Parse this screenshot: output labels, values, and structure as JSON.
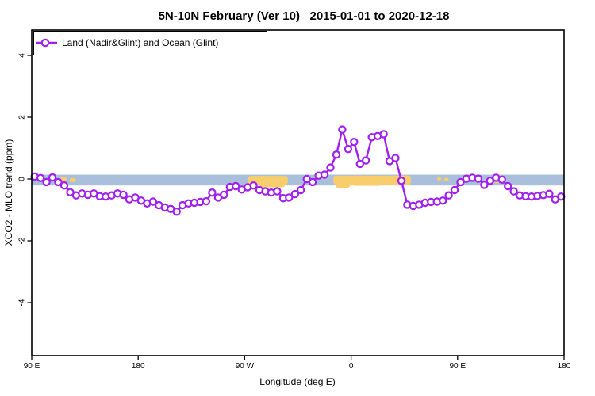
{
  "header": {
    "title": "5N-10N February (Ver 10)   2015-01-01 to 2020-12-18"
  },
  "legend": {
    "label": "Land (Nadir&Glint) and Ocean (Glint)"
  },
  "axes": {
    "x": {
      "title": "Longitude (deg E)",
      "ticks": [
        {
          "lon": 90,
          "label": "90 E"
        },
        {
          "lon": 180,
          "label": "180"
        },
        {
          "lon": 270,
          "label": "90 W"
        },
        {
          "lon": 360,
          "label": "0"
        },
        {
          "lon": 450,
          "label": "90 E"
        },
        {
          "lon": 540,
          "label": "180"
        }
      ]
    },
    "y": {
      "title": "XCO2 - MLO trend (ppm)",
      "ticks": [
        {
          "value": -4,
          "label": "-4"
        },
        {
          "value": -2,
          "label": "-2"
        },
        {
          "value": 0,
          "label": "0"
        },
        {
          "value": 2,
          "label": "2"
        },
        {
          "value": 4,
          "label": "4"
        }
      ]
    }
  },
  "colors": {
    "series_purple": "#A020F0",
    "marker_fill": "#ffffff",
    "reference_band_blue": "#A9BFDB",
    "highlight_yellow": "#F8CE6D",
    "axis_black": "#000000",
    "background": "#ffffff"
  },
  "chart_data": {
    "type": "line",
    "title": "5N-10N February (Ver 10)   2015-01-01 to 2020-12-18",
    "xlabel": "Longitude (deg E)",
    "ylabel": "XCO2 - MLO trend (ppm)",
    "x_note": "wrapped longitude axis: 90E -> 180 -> 90W -> 0 -> 90E -> 180 (values >180 wrap westward/eastward)",
    "xlim": [
      90,
      540
    ],
    "ylim": [
      -4.8,
      4.8
    ],
    "grid": false,
    "legend_position": "top-left",
    "marker": "open-circle",
    "series": [
      {
        "name": "Land (Nadir&Glint) and Ocean (Glint)",
        "color": "#A020F0",
        "x": [
          92.5,
          97.5,
          102.5,
          107.5,
          112.5,
          117.5,
          122.5,
          127.5,
          132.5,
          137.5,
          142.5,
          147.5,
          152.5,
          157.5,
          162.5,
          167.5,
          172.5,
          177.5,
          182.5,
          187.5,
          192.5,
          197.5,
          202.5,
          207.5,
          212.5,
          217.5,
          222.5,
          227.5,
          232.5,
          237.5,
          242.5,
          247.5,
          252.5,
          257.5,
          262.5,
          267.5,
          272.5,
          277.5,
          282.5,
          287.5,
          292.5,
          297.5,
          302.5,
          307.5,
          312.5,
          317.5,
          322.5,
          327.5,
          332.5,
          337.5,
          342.5,
          347.5,
          352.5,
          357.5,
          362.5,
          367.5,
          372.5,
          377.5,
          382.5,
          387.5,
          392.5,
          397.5,
          402.5,
          407.5,
          412.5,
          417.5,
          422.5,
          427.5,
          432.5,
          437.5,
          442.5,
          447.5,
          452.5,
          457.5,
          462.5,
          467.5,
          472.5,
          477.5,
          482.5,
          487.5,
          492.5,
          497.5,
          502.5,
          507.5,
          512.5,
          517.5,
          522.5,
          527.5,
          532.5,
          537.5
        ],
        "y": [
          0.08,
          0.03,
          -0.1,
          0.05,
          -0.1,
          -0.21,
          -0.43,
          -0.53,
          -0.47,
          -0.51,
          -0.47,
          -0.56,
          -0.57,
          -0.53,
          -0.47,
          -0.51,
          -0.66,
          -0.6,
          -0.7,
          -0.79,
          -0.73,
          -0.85,
          -0.92,
          -0.97,
          -1.06,
          -0.85,
          -0.79,
          -0.77,
          -0.74,
          -0.72,
          -0.44,
          -0.6,
          -0.51,
          -0.26,
          -0.23,
          -0.34,
          -0.27,
          -0.21,
          -0.36,
          -0.4,
          -0.44,
          -0.4,
          -0.62,
          -0.6,
          -0.49,
          -0.36,
          0.0,
          -0.1,
          0.11,
          0.14,
          0.37,
          0.79,
          1.6,
          0.97,
          1.2,
          0.49,
          0.6,
          1.35,
          1.39,
          1.45,
          0.58,
          0.68,
          -0.06,
          -0.83,
          -0.87,
          -0.83,
          -0.77,
          -0.74,
          -0.73,
          -0.7,
          -0.53,
          -0.36,
          -0.1,
          0.01,
          0.04,
          0.01,
          -0.19,
          -0.06,
          0.04,
          -0.02,
          -0.23,
          -0.4,
          -0.53,
          -0.56,
          -0.57,
          -0.55,
          -0.52,
          -0.48,
          -0.66,
          -0.57
        ]
      }
    ],
    "reference_band": {
      "v_high": 0.14,
      "v_low": -0.21,
      "color": "#A9BFDB",
      "extent": "full-width"
    },
    "highlight_segments": [
      {
        "lon1": 114.0,
        "lon2": 119.5,
        "v_top": 0.06,
        "v_bot": -0.07
      },
      {
        "lon1": 122.0,
        "lon2": 127.5,
        "v_top": 0.03,
        "v_bot": -0.1
      },
      {
        "lon1": 273.0,
        "lon2": 306.5,
        "v_top": 0.1,
        "v_bot": -0.18
      },
      {
        "lon1": 283.0,
        "lon2": 304.0,
        "v_top": -0.05,
        "v_bot": -0.27
      },
      {
        "lon1": 345.0,
        "lon2": 410.5,
        "v_top": 0.11,
        "v_bot": -0.18
      },
      {
        "lon1": 347.0,
        "lon2": 359.0,
        "v_top": -0.05,
        "v_bot": -0.29
      },
      {
        "lon1": 361.0,
        "lon2": 386.0,
        "v_top": -0.05,
        "v_bot": -0.22
      },
      {
        "lon1": 432.5,
        "lon2": 436.5,
        "v_top": 0.05,
        "v_bot": -0.05
      },
      {
        "lon1": 438.5,
        "lon2": 442.5,
        "v_top": 0.04,
        "v_bot": -0.06
      },
      {
        "lon1": 480.5,
        "lon2": 487.0,
        "v_top": 0.14,
        "v_bot": -0.13
      }
    ]
  }
}
